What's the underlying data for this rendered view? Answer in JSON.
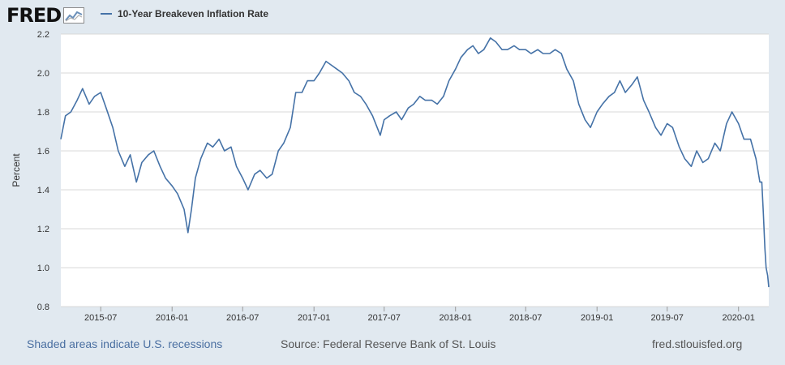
{
  "header": {
    "logo_text": "FRED",
    "logo_icon": "line-chart-icon"
  },
  "colors": {
    "series": "#4572a7",
    "plot_bg": "#ffffff",
    "page_bg": "#e1e9f0",
    "grid": "#d8d8d8"
  },
  "footer": {
    "recessions": "Shaded areas indicate U.S. recessions",
    "source": "Source: Federal Reserve Bank of St. Louis",
    "url": "fred.stlouisfed.org"
  },
  "chart_data": {
    "type": "line",
    "title": "",
    "xlabel": "",
    "ylabel": "Percent",
    "ylim": [
      0.8,
      2.2
    ],
    "xlim": [
      "2015-03-20",
      "2020-03-19"
    ],
    "grid": true,
    "legend_position": "top-left",
    "yticks": [
      "0.8",
      "1.0",
      "1.2",
      "1.4",
      "1.6",
      "1.8",
      "2.0",
      "2.2"
    ],
    "xticks": [
      "2015-07",
      "2016-01",
      "2016-07",
      "2017-01",
      "2017-07",
      "2018-01",
      "2018-07",
      "2019-01",
      "2019-07",
      "2020-01"
    ],
    "series": [
      {
        "name": "10-Year Breakeven Inflation Rate",
        "x": [
          "2015-03-20",
          "2015-04-01",
          "2015-04-15",
          "2015-05-01",
          "2015-05-15",
          "2015-06-01",
          "2015-06-15",
          "2015-07-01",
          "2015-07-15",
          "2015-08-01",
          "2015-08-15",
          "2015-09-01",
          "2015-09-15",
          "2015-10-01",
          "2015-10-15",
          "2015-11-01",
          "2015-11-15",
          "2015-12-01",
          "2015-12-15",
          "2016-01-01",
          "2016-01-15",
          "2016-02-01",
          "2016-02-11",
          "2016-02-20",
          "2016-03-01",
          "2016-03-15",
          "2016-04-01",
          "2016-04-15",
          "2016-05-01",
          "2016-05-15",
          "2016-06-01",
          "2016-06-15",
          "2016-07-01",
          "2016-07-15",
          "2016-08-01",
          "2016-08-15",
          "2016-09-01",
          "2016-09-15",
          "2016-10-01",
          "2016-10-15",
          "2016-11-01",
          "2016-11-15",
          "2016-12-01",
          "2016-12-15",
          "2017-01-01",
          "2017-01-15",
          "2017-02-01",
          "2017-02-15",
          "2017-03-01",
          "2017-03-15",
          "2017-04-01",
          "2017-04-15",
          "2017-05-01",
          "2017-05-15",
          "2017-06-01",
          "2017-06-21",
          "2017-07-01",
          "2017-07-15",
          "2017-08-01",
          "2017-08-15",
          "2017-09-01",
          "2017-09-15",
          "2017-10-01",
          "2017-10-15",
          "2017-11-01",
          "2017-11-15",
          "2017-12-01",
          "2017-12-15",
          "2018-01-01",
          "2018-01-15",
          "2018-02-01",
          "2018-02-15",
          "2018-03-01",
          "2018-03-15",
          "2018-04-01",
          "2018-04-15",
          "2018-05-01",
          "2018-05-15",
          "2018-06-01",
          "2018-06-15",
          "2018-07-01",
          "2018-07-15",
          "2018-08-01",
          "2018-08-15",
          "2018-09-01",
          "2018-09-15",
          "2018-10-01",
          "2018-10-15",
          "2018-11-01",
          "2018-11-15",
          "2018-12-01",
          "2018-12-15",
          "2019-01-01",
          "2019-01-15",
          "2019-02-01",
          "2019-02-15",
          "2019-03-01",
          "2019-03-15",
          "2019-04-01",
          "2019-04-15",
          "2019-05-01",
          "2019-05-15",
          "2019-06-01",
          "2019-06-15",
          "2019-07-01",
          "2019-07-15",
          "2019-08-01",
          "2019-08-15",
          "2019-09-01",
          "2019-09-15",
          "2019-10-01",
          "2019-10-15",
          "2019-11-01",
          "2019-11-15",
          "2019-12-01",
          "2019-12-15",
          "2020-01-01",
          "2020-01-15",
          "2020-02-01",
          "2020-02-15",
          "2020-02-25",
          "2020-03-01",
          "2020-03-05",
          "2020-03-09",
          "2020-03-12",
          "2020-03-16",
          "2020-03-19"
        ],
        "values": [
          1.66,
          1.78,
          1.8,
          1.86,
          1.92,
          1.84,
          1.88,
          1.9,
          1.82,
          1.72,
          1.6,
          1.52,
          1.58,
          1.44,
          1.54,
          1.58,
          1.6,
          1.52,
          1.46,
          1.42,
          1.38,
          1.3,
          1.18,
          1.3,
          1.46,
          1.56,
          1.64,
          1.62,
          1.66,
          1.6,
          1.62,
          1.52,
          1.46,
          1.4,
          1.48,
          1.5,
          1.46,
          1.48,
          1.6,
          1.64,
          1.72,
          1.9,
          1.9,
          1.96,
          1.96,
          2.0,
          2.06,
          2.04,
          2.02,
          2.0,
          1.96,
          1.9,
          1.88,
          1.84,
          1.78,
          1.68,
          1.76,
          1.78,
          1.8,
          1.76,
          1.82,
          1.84,
          1.88,
          1.86,
          1.86,
          1.84,
          1.88,
          1.96,
          2.02,
          2.08,
          2.12,
          2.14,
          2.1,
          2.12,
          2.18,
          2.16,
          2.12,
          2.12,
          2.14,
          2.12,
          2.12,
          2.1,
          2.12,
          2.1,
          2.1,
          2.12,
          2.1,
          2.02,
          1.96,
          1.84,
          1.76,
          1.72,
          1.8,
          1.84,
          1.88,
          1.9,
          1.96,
          1.9,
          1.94,
          1.98,
          1.86,
          1.8,
          1.72,
          1.68,
          1.74,
          1.72,
          1.62,
          1.56,
          1.52,
          1.6,
          1.54,
          1.56,
          1.64,
          1.6,
          1.74,
          1.8,
          1.74,
          1.66,
          1.66,
          1.56,
          1.44,
          1.44,
          1.28,
          1.1,
          1.0,
          0.96,
          0.9
        ]
      }
    ]
  }
}
